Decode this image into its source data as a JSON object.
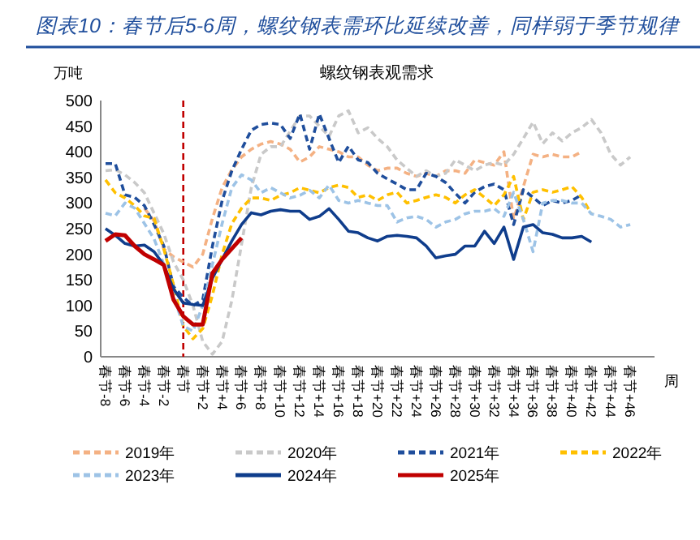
{
  "chart_data": {
    "type": "line",
    "title": "图表10：春节后5-6周，螺纹钢表需环比延续改善，同样弱于季节规律",
    "subtitle": "螺纹钢表观需求",
    "ylabel": "万吨",
    "xlabel": "周",
    "categories": [
      "春节-8",
      null,
      "春节-6",
      null,
      "春节-4",
      null,
      "春节-2",
      null,
      "春节",
      null,
      "春节+2",
      null,
      "春节+4",
      null,
      "春节+6",
      null,
      "春节+8",
      null,
      "春节+10",
      null,
      "春节+12",
      null,
      "春节+14",
      null,
      "春节+16",
      null,
      "春节+18",
      null,
      "春节+20",
      null,
      "春节+22",
      null,
      "春节+24",
      null,
      "春节+26",
      null,
      "春节+28",
      null,
      "春节+30",
      null,
      "春节+32",
      null,
      "春节+34",
      null,
      "春节+36",
      null,
      "春节+38",
      null,
      "春节+40",
      null,
      "春节+42",
      null,
      "春节+44",
      null,
      "春节+46",
      null,
      null
    ],
    "ylim": [
      0,
      500
    ],
    "yticks": [
      0,
      50,
      100,
      150,
      200,
      250,
      300,
      350,
      400,
      450,
      500
    ],
    "grid": false,
    "legend": "bottom",
    "marker": "none",
    "ref_lines": [
      {
        "axis": "x",
        "value": "春节",
        "color": "#c00000",
        "line_style": "dashed"
      }
    ],
    "series": [
      {
        "name": "2019年",
        "color": "#f4b183",
        "line_style": "dashed",
        "values": [
          null,
          null,
          null,
          null,
          290,
          265,
          210,
          195,
          185,
          175,
          200,
          270,
          330,
          365,
          390,
          405,
          415,
          420,
          415,
          405,
          380,
          390,
          410,
          405,
          400,
          390,
          390,
          374,
          363,
          368,
          368,
          358,
          352,
          358,
          352,
          363,
          363,
          358,
          384,
          379,
          374,
          400,
          268,
          332,
          395,
          390,
          395,
          390,
          390,
          400,
          null,
          null,
          null,
          null,
          null,
          null,
          null
        ]
      },
      {
        "name": "2020年",
        "color": "#c9c9c9",
        "line_style": "dashed",
        "values": [
          363,
          365,
          355,
          340,
          320,
          280,
          240,
          185,
          150,
          100,
          30,
          5,
          30,
          110,
          220,
          330,
          395,
          410,
          410,
          440,
          470,
          470,
          450,
          430,
          470,
          480,
          437,
          447,
          426,
          410,
          384,
          368,
          352,
          363,
          352,
          358,
          384,
          374,
          363,
          374,
          379,
          374,
          395,
          426,
          458,
          416,
          437,
          421,
          437,
          447,
          463,
          437,
          395,
          374,
          390,
          null,
          null
        ]
      },
      {
        "name": "2021年",
        "color": "#1f4e9c",
        "line_style": "dashed",
        "values": [
          377,
          377,
          316,
          311,
          295,
          258,
          216,
          137,
          116,
          100,
          111,
          216,
          305,
          363,
          405,
          442,
          453,
          456,
          453,
          426,
          474,
          405,
          474,
          426,
          379,
          411,
          384,
          379,
          358,
          347,
          337,
          326,
          326,
          358,
          352,
          340,
          319,
          300,
          321,
          332,
          337,
          326,
          258,
          326,
          311,
          295,
          305,
          300,
          305,
          316,
          null,
          null,
          null,
          null,
          null,
          null,
          null
        ]
      },
      {
        "name": "2022年",
        "color": "#ffc000",
        "line_style": "dashed",
        "values": [
          345,
          320,
          310,
          295,
          275,
          270,
          210,
          140,
          60,
          35,
          55,
          120,
          200,
          260,
          290,
          310,
          310,
          305,
          315,
          320,
          330,
          325,
          320,
          330,
          335,
          330,
          311,
          316,
          305,
          316,
          321,
          300,
          305,
          311,
          316,
          311,
          300,
          316,
          326,
          311,
          295,
          316,
          352,
          268,
          321,
          326,
          321,
          326,
          332,
          311,
          279,
          null,
          null,
          null,
          null,
          null,
          null
        ]
      },
      {
        "name": "2023年",
        "color": "#9dc3e6",
        "line_style": "dashed",
        "values": [
          280,
          275,
          300,
          290,
          260,
          230,
          180,
          120,
          60,
          50,
          100,
          180,
          260,
          330,
          355,
          345,
          320,
          330,
          320,
          310,
          315,
          325,
          310,
          335,
          305,
          300,
          305,
          300,
          295,
          295,
          263,
          271,
          274,
          268,
          253,
          263,
          268,
          279,
          284,
          284,
          289,
          274,
          321,
          268,
          205,
          300,
          305,
          305,
          300,
          300,
          279,
          274,
          268,
          253,
          258,
          null,
          null
        ]
      },
      {
        "name": "2024年",
        "color": "#0f3d8c",
        "line_style": "solid",
        "values": [
          250,
          237,
          221,
          216,
          218,
          205,
          179,
          132,
          105,
          102,
          100,
          153,
          190,
          226,
          258,
          281,
          277,
          284,
          287,
          284,
          284,
          268,
          274,
          289,
          268,
          245,
          242,
          232,
          226,
          235,
          237,
          235,
          232,
          216,
          193,
          197,
          200,
          216,
          216,
          245,
          221,
          253,
          190,
          253,
          258,
          242,
          239,
          232,
          232,
          235,
          224,
          null,
          null,
          null,
          null,
          null,
          null
        ]
      },
      {
        "name": "2025年",
        "color": "#c00000",
        "line_style": "solid",
        "values": [
          226,
          239,
          237,
          216,
          200,
          190,
          179,
          111,
          79,
          63,
          63,
          163,
          190,
          211,
          232,
          null,
          null,
          null,
          null,
          null,
          null,
          null,
          null,
          null,
          null,
          null,
          null,
          null,
          null,
          null,
          null,
          null,
          null,
          null,
          null,
          null,
          null,
          null,
          null,
          null,
          null,
          null,
          null,
          null,
          null,
          null,
          null,
          null,
          null,
          null,
          null,
          null,
          null,
          null,
          null,
          null,
          null
        ]
      }
    ]
  }
}
